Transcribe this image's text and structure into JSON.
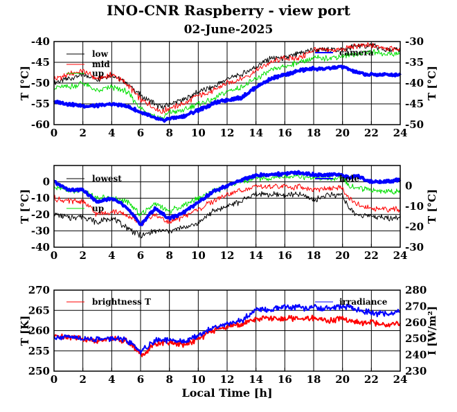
{
  "page": {
    "title": "INO-CNR Raspberry - view port",
    "date": "02-June-2025",
    "xlabel": "Local Time [h]"
  },
  "chart_data": [
    {
      "type": "line",
      "x_ticks": [
        0,
        2,
        4,
        6,
        8,
        10,
        12,
        14,
        16,
        18,
        20,
        22,
        24
      ],
      "xlim": [
        0,
        24
      ],
      "ylabel_left": "T [°C]",
      "ylim_left": [
        -60,
        -40
      ],
      "yticks_left": [
        -60,
        -55,
        -50,
        -45,
        -40
      ],
      "ylabel_right": "T [°C]",
      "ylim_right": [
        -50,
        -30
      ],
      "yticks_right": [
        -50,
        -45,
        -40,
        -35,
        -30
      ],
      "grid": true,
      "series": [
        {
          "name": "low",
          "color": "#000000",
          "axis": "left",
          "width": 1,
          "x": [
            0,
            1,
            2,
            3,
            4,
            5,
            6,
            7,
            7.5,
            8,
            9,
            10,
            11,
            12,
            13,
            14,
            15,
            16,
            17,
            18,
            19,
            20,
            21,
            22,
            23,
            24
          ],
          "y": [
            -50,
            -49,
            -48,
            -49,
            -48,
            -50,
            -53,
            -55,
            -56,
            -55,
            -54,
            -52,
            -51,
            -49,
            -48,
            -46,
            -44,
            -44,
            -43,
            -42,
            -42,
            -42,
            -41,
            -41,
            -42,
            -42
          ]
        },
        {
          "name": "mid",
          "color": "#ff0000",
          "axis": "left",
          "width": 1,
          "x": [
            0,
            1,
            2,
            3,
            4,
            5,
            6,
            7,
            7.5,
            8,
            9,
            10,
            11,
            12,
            13,
            14,
            15,
            16,
            17,
            18,
            19,
            20,
            21,
            22,
            23,
            24
          ],
          "y": [
            -49,
            -48,
            -47,
            -49,
            -48,
            -50,
            -54,
            -56,
            -57,
            -56,
            -55,
            -53,
            -52,
            -50,
            -49,
            -47,
            -45,
            -44,
            -44,
            -42,
            -42,
            -42,
            -41,
            -41,
            -41.5,
            -42
          ]
        },
        {
          "name": "up",
          "color": "#00e000",
          "axis": "left",
          "width": 1,
          "x": [
            0,
            1,
            2,
            3,
            4,
            5,
            6,
            7,
            7.5,
            8,
            9,
            10,
            11,
            12,
            13,
            14,
            15,
            16,
            17,
            18,
            19,
            20,
            21,
            22,
            23,
            24
          ],
          "y": [
            -51,
            -51,
            -50,
            -52,
            -51,
            -52,
            -56,
            -58,
            -58.5,
            -57,
            -56.5,
            -55,
            -54,
            -52,
            -51,
            -49,
            -47,
            -46,
            -45,
            -44,
            -44,
            -43.5,
            -43,
            -42.5,
            -43,
            -43
          ]
        },
        {
          "name": "camera",
          "color": "#0000ff",
          "axis": "right",
          "width": 4,
          "x": [
            0,
            1,
            2,
            3,
            4,
            5,
            6,
            7,
            7.5,
            8,
            9,
            10,
            11,
            12,
            13,
            14,
            15,
            16,
            17,
            18,
            19,
            20,
            21,
            22,
            23,
            24
          ],
          "y": [
            -44.5,
            -45,
            -45.5,
            -45.5,
            -45,
            -45.5,
            -47,
            -48.5,
            -49,
            -48.5,
            -48,
            -46.5,
            -45,
            -44,
            -43.5,
            -41,
            -39,
            -38,
            -37,
            -36.5,
            -36.5,
            -36,
            -37.5,
            -38,
            -38,
            -38
          ]
        }
      ]
    },
    {
      "type": "line",
      "x_ticks": [
        0,
        2,
        4,
        6,
        8,
        10,
        12,
        14,
        16,
        18,
        20,
        22,
        24
      ],
      "xlim": [
        0,
        24
      ],
      "ylabel_left": "T [°C]",
      "ylim_left": [
        -40,
        10
      ],
      "yticks_left": [
        -40,
        -30,
        -20,
        -10,
        0
      ],
      "ylabel_right": "T [°C]",
      "ylim_right": [
        -30,
        10
      ],
      "yticks_right": [
        -30,
        -20,
        -10,
        0
      ],
      "grid": true,
      "series": [
        {
          "name": "lowest",
          "color": "#000000",
          "axis": "left",
          "width": 1,
          "x": [
            0,
            1,
            2,
            3,
            4,
            5,
            6,
            7,
            8,
            9,
            10,
            11,
            12,
            13,
            14,
            15,
            16,
            17,
            18,
            19,
            20,
            20.5,
            21,
            22,
            23,
            24
          ],
          "y": [
            -20,
            -22,
            -21,
            -25,
            -22,
            -28,
            -33,
            -30,
            -30,
            -28,
            -25,
            -18,
            -15,
            -12,
            -7,
            -8,
            -8,
            -8,
            -11,
            -8,
            -8,
            -17,
            -20,
            -21,
            -22,
            -22
          ]
        },
        {
          "name": "",
          "color": "#ff0000",
          "axis": "left",
          "width": 1,
          "x": [
            0,
            1,
            2,
            3,
            4,
            5,
            6,
            7,
            8,
            9,
            10,
            11,
            12,
            13,
            14,
            15,
            16,
            17,
            18,
            19,
            20,
            20.5,
            21,
            22,
            23,
            24
          ],
          "y": [
            -10,
            -12,
            -12,
            -20,
            -18,
            -20,
            -26,
            -20,
            -25,
            -21,
            -17,
            -12,
            -8,
            -5,
            -3,
            -3,
            -3,
            -3,
            -5,
            -4,
            -4,
            -11,
            -14,
            -16,
            -17,
            -17
          ]
        },
        {
          "name": "up",
          "color": "#00e000",
          "axis": "left",
          "width": 1,
          "x": [
            0,
            1,
            2,
            3,
            4,
            5,
            6,
            7,
            8,
            9,
            10,
            11,
            12,
            13,
            14,
            15,
            16,
            17,
            18,
            19,
            20,
            20.5,
            21,
            22,
            23,
            24
          ],
          "y": [
            -3,
            -5,
            -6,
            -10,
            -10,
            -12,
            -20,
            -13,
            -18,
            -14,
            -10,
            -6,
            -3,
            0,
            2,
            2,
            3,
            3,
            2,
            2,
            2,
            -2,
            -4,
            -5,
            -6,
            -6
          ]
        },
        {
          "name": "hole",
          "color": "#0000ff",
          "axis": "right",
          "width": 4,
          "x": [
            0,
            1,
            2,
            3,
            4,
            5,
            6,
            7,
            8,
            9,
            10,
            11,
            12,
            13,
            14,
            15,
            16,
            17,
            18,
            19,
            20,
            20.5,
            21,
            22,
            23,
            24
          ],
          "y": [
            2,
            -2,
            -2,
            -8,
            -6,
            -10,
            -19,
            -11,
            -16,
            -13,
            -8,
            -3,
            0,
            3,
            5,
            5.5,
            6,
            6.5,
            5.5,
            5.5,
            5.5,
            4,
            5,
            2,
            2,
            3
          ]
        }
      ]
    },
    {
      "type": "line",
      "x_ticks": [
        0,
        2,
        4,
        6,
        8,
        10,
        12,
        14,
        16,
        18,
        20,
        22,
        24
      ],
      "xlim": [
        0,
        24
      ],
      "ylabel_left": "T [K]",
      "ylim_left": [
        250,
        270
      ],
      "yticks_left": [
        250,
        255,
        260,
        265,
        270
      ],
      "ylabel_right": "I [W/m²]",
      "ylim_right": [
        230,
        280
      ],
      "yticks_right": [
        230,
        240,
        250,
        260,
        270,
        280
      ],
      "grid": true,
      "series": [
        {
          "name": "brightness T",
          "color": "#ff0000",
          "axis": "left",
          "width": 2,
          "x": [
            0,
            1,
            2,
            3,
            4,
            5,
            5.5,
            6,
            6.5,
            7,
            8,
            9,
            10,
            11,
            12,
            13,
            14,
            15,
            16,
            17,
            18,
            19,
            20,
            21,
            22,
            23,
            24
          ],
          "y": [
            258.5,
            258.5,
            258,
            257.5,
            258,
            257.5,
            256,
            254,
            255,
            257,
            257,
            256.5,
            258,
            260,
            261,
            261.5,
            263,
            263,
            263,
            263,
            263,
            262.5,
            263,
            262,
            262,
            261.5,
            262
          ]
        },
        {
          "name": "irradiance",
          "color": "#0000ff",
          "axis": "right",
          "width": 2,
          "x": [
            0,
            1,
            2,
            3,
            4,
            5,
            5.5,
            6,
            6.5,
            7,
            8,
            9,
            10,
            11,
            12,
            13,
            14,
            15,
            16,
            17,
            18,
            19,
            20,
            21,
            22,
            23,
            24
          ],
          "y": [
            251,
            251,
            250,
            250,
            250,
            249,
            246,
            242,
            245,
            249,
            249,
            248,
            252,
            257,
            259,
            261,
            268,
            268,
            270,
            269,
            269,
            269,
            270,
            268,
            266,
            265,
            267
          ]
        }
      ]
    }
  ]
}
